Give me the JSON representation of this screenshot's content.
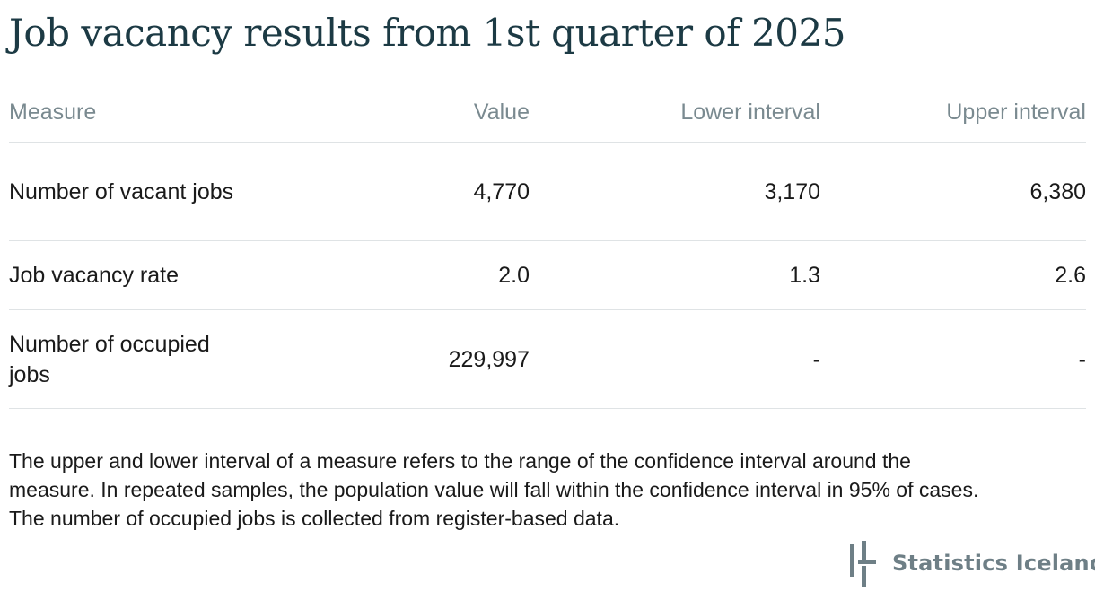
{
  "title": "Job vacancy results from 1st quarter of 2025",
  "table": {
    "headers": {
      "measure": "Measure",
      "value": "Value",
      "lower": "Lower interval",
      "upper": "Upper interval"
    },
    "rows": [
      {
        "measure": "Number of vacant jobs",
        "value": "4,770",
        "lower": "3,170",
        "upper": "6,380"
      },
      {
        "measure": "Job vacancy rate",
        "value": "2.0",
        "lower": "1.3",
        "upper": "2.6"
      },
      {
        "measure": "Number of occupied jobs",
        "value": "229,997",
        "lower": "-",
        "upper": "-"
      }
    ]
  },
  "footnote": {
    "line1": "The upper and lower interval of a measure refers to the range of the confidence interval around the",
    "line2": "measure. In repeated samples, the population value will fall within the confidence interval in 95% of cases.",
    "line3": "The number of occupied jobs is collected from register-based data."
  },
  "logo": {
    "icon": "statistics-iceland-logo-icon",
    "text": "Statistics Iceland",
    "color": "#6e7f86"
  },
  "colors": {
    "title": "#1c3a44",
    "header_text": "#7a8a90",
    "body_text": "#1a1a1a",
    "divider": "#dfe3e5"
  }
}
